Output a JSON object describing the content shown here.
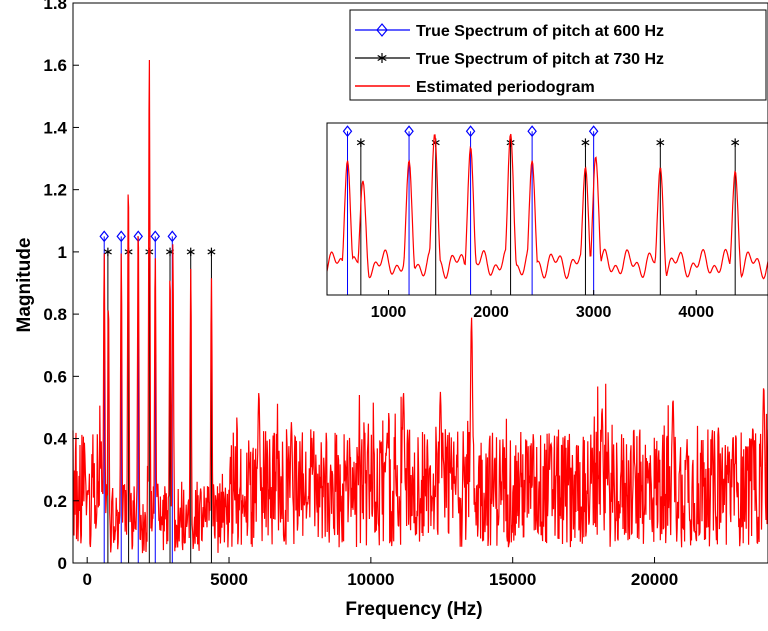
{
  "chart_data": {
    "type": "line",
    "xlabel": "Frequency (Hz)",
    "ylabel": "Magnitude",
    "xlim": [
      -500,
      24000
    ],
    "ylim": [
      0,
      1.8
    ],
    "x_ticks": [
      0,
      5000,
      10000,
      15000,
      20000
    ],
    "y_ticks": [
      0,
      0.2,
      0.4,
      0.6,
      0.8,
      1,
      1.2,
      1.4,
      1.6,
      1.8
    ],
    "x_tick_labels": [
      "0",
      "5000",
      "10000",
      "15000",
      "20000"
    ],
    "y_tick_labels": [
      "0",
      "0.2",
      "0.4",
      "0.6",
      "0.8",
      "1",
      "1.2",
      "1.4",
      "1.6",
      "1.8"
    ],
    "grid": false,
    "legend_position": "top-right",
    "series": [
      {
        "name": "True Spectrum of pitch at 600 Hz",
        "kind": "stem",
        "marker": "diamond",
        "color": "#0000ff",
        "x": [
          600,
          1200,
          1800,
          2400,
          3000
        ],
        "y": [
          1.05,
          1.05,
          1.05,
          1.05,
          1.05
        ]
      },
      {
        "name": "True Spectrum of pitch at 730 Hz",
        "kind": "stem",
        "marker": "asterisk",
        "color": "#000000",
        "x": [
          730,
          1460,
          2190,
          2920,
          3650,
          4380
        ],
        "y": [
          1.0,
          1.0,
          1.0,
          1.0,
          1.0,
          1.0
        ]
      },
      {
        "name": "Estimated periodogram",
        "kind": "line",
        "color": "#ff0000",
        "peaks": [
          {
            "x": 600,
            "y": 1.0
          },
          {
            "x": 750,
            "y": 0.85
          },
          {
            "x": 1200,
            "y": 1.0
          },
          {
            "x": 1450,
            "y": 1.24
          },
          {
            "x": 1800,
            "y": 1.1
          },
          {
            "x": 2190,
            "y": 1.65
          },
          {
            "x": 2400,
            "y": 1.0
          },
          {
            "x": 2920,
            "y": 0.95
          },
          {
            "x": 3020,
            "y": 1.03
          },
          {
            "x": 3650,
            "y": 0.95
          },
          {
            "x": 4380,
            "y": 0.92
          },
          {
            "x": 6050,
            "y": 0.55
          },
          {
            "x": 7200,
            "y": 0.45
          },
          {
            "x": 11150,
            "y": 0.55
          },
          {
            "x": 12450,
            "y": 0.55
          },
          {
            "x": 13550,
            "y": 0.79
          },
          {
            "x": 18150,
            "y": 0.5
          },
          {
            "x": 20650,
            "y": 0.53
          },
          {
            "x": 23850,
            "y": 0.57
          }
        ]
      }
    ],
    "inset": {
      "xlim": [
        400,
        4700
      ],
      "ylim": [
        0,
        1.05
      ],
      "x_ticks": [
        1000,
        2000,
        3000,
        4000
      ],
      "x_tick_labels": [
        "1000",
        "2000",
        "3000",
        "4000"
      ],
      "grid": false
    }
  }
}
